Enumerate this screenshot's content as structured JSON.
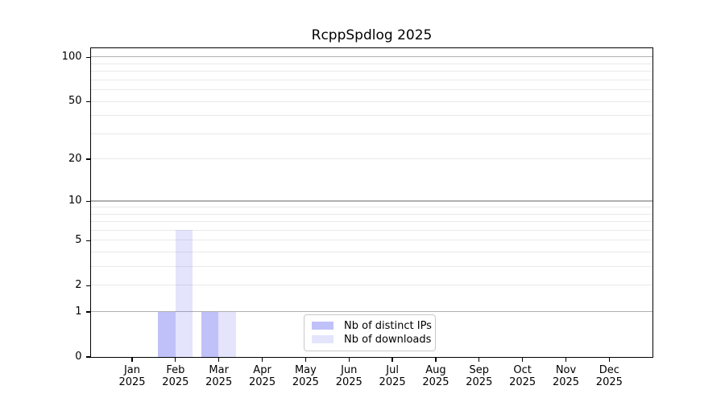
{
  "chart_data": {
    "type": "bar",
    "title": "RcppSpdlog 2025",
    "categories": [
      "Jan",
      "Feb",
      "Mar",
      "Apr",
      "May",
      "Jun",
      "Jul",
      "Aug",
      "Sep",
      "Oct",
      "Nov",
      "Dec"
    ],
    "x_year_label": "2025",
    "series": [
      {
        "name": "Nb of distinct IPs",
        "color": "rgba(88,88,238,0.37)",
        "values": [
          0,
          1,
          1,
          0,
          0,
          0,
          0,
          0,
          0,
          0,
          0,
          0
        ]
      },
      {
        "name": "Nb of downloads",
        "color": "rgba(88,88,238,0.16)",
        "values": [
          0,
          6,
          1,
          0,
          0,
          0,
          0,
          0,
          0,
          0,
          0,
          0
        ]
      }
    ],
    "y_scale": "log1p",
    "ylim": [
      0,
      115
    ],
    "y_ticks": [
      0,
      1,
      2,
      5,
      10,
      20,
      50,
      100
    ],
    "grid_major": [
      1,
      10,
      100
    ],
    "grid_minor": [
      2,
      3,
      4,
      5,
      6,
      7,
      8,
      9,
      20,
      30,
      40,
      50,
      60,
      70,
      80,
      90
    ],
    "legend_position": "lower center",
    "xlabel": "",
    "ylabel": ""
  },
  "colors": {
    "grid_major": "#b0b0b0",
    "grid_minor": "#e9e9e9",
    "spine": "#000000",
    "background": "#ffffff",
    "text": "#000000"
  }
}
